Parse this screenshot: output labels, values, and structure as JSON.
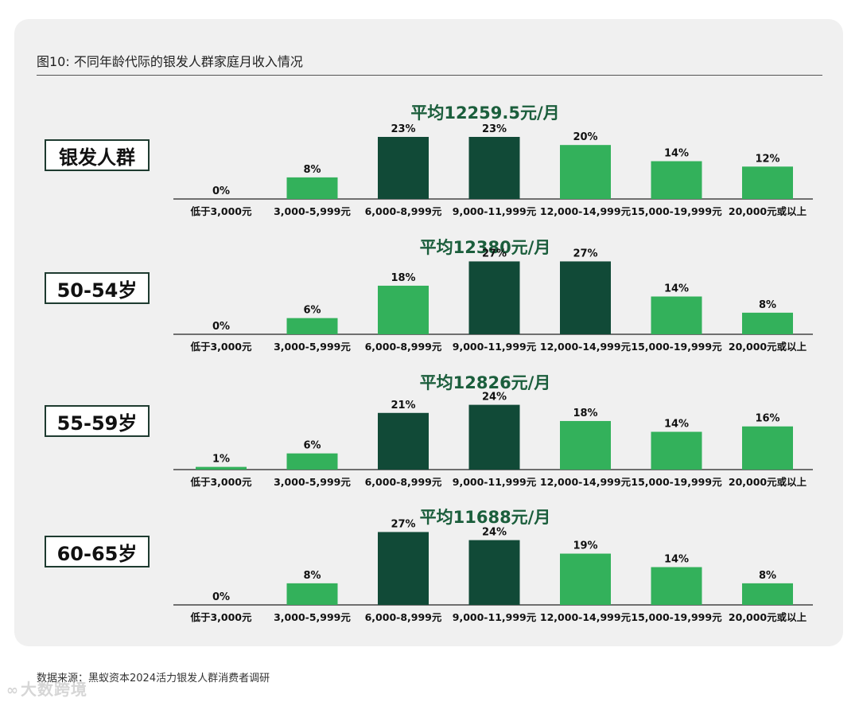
{
  "figure_title": "图10: 不同年龄代际的银发人群家庭月收入情况",
  "source": "数据来源：黑蚁资本2024活力银发人群消费者调研",
  "watermark": {
    "text": "大数跨境",
    "icon": "infinity-icon"
  },
  "colors": {
    "dark": "#114a37",
    "light": "#33b15b",
    "avg_text": "#1b5e3c",
    "axis": "#222222"
  },
  "chart_data": [
    {
      "type": "bar",
      "group": "银发人群",
      "average_label": "平均12259.5元/月",
      "categories": [
        "低于3,000元",
        "3,000-5,999元",
        "6,000-8,999元",
        "9,000-11,999元",
        "12,000-14,999元",
        "15,000-19,999元",
        "20,000元或以上"
      ],
      "values": [
        0,
        8,
        23,
        23,
        20,
        14,
        12
      ],
      "value_labels": [
        "0%",
        "8%",
        "23%",
        "23%",
        "20%",
        "14%",
        "12%"
      ],
      "highlight": [
        false,
        false,
        true,
        true,
        false,
        false,
        false
      ],
      "ylim": [
        0,
        30
      ],
      "unit": "%"
    },
    {
      "type": "bar",
      "group": "50-54岁",
      "average_label": "平均12380元/月",
      "categories": [
        "低于3,000元",
        "3,000-5,999元",
        "6,000-8,999元",
        "9,000-11,999元",
        "12,000-14,999元",
        "15,000-19,999元",
        "20,000元或以上"
      ],
      "values": [
        0,
        6,
        18,
        27,
        27,
        14,
        8
      ],
      "value_labels": [
        "0%",
        "6%",
        "18%",
        "27%",
        "27%",
        "14%",
        "8%"
      ],
      "highlight": [
        false,
        false,
        false,
        true,
        true,
        false,
        false
      ],
      "ylim": [
        0,
        30
      ],
      "unit": "%"
    },
    {
      "type": "bar",
      "group": "55-59岁",
      "average_label": "平均12826元/月",
      "categories": [
        "低于3,000元",
        "3,000-5,999元",
        "6,000-8,999元",
        "9,000-11,999元",
        "12,000-14,999元",
        "15,000-19,999元",
        "20,000元或以上"
      ],
      "values": [
        1,
        6,
        21,
        24,
        18,
        14,
        16
      ],
      "value_labels": [
        "1%",
        "6%",
        "21%",
        "24%",
        "18%",
        "14%",
        "16%"
      ],
      "highlight": [
        false,
        false,
        true,
        true,
        false,
        false,
        false
      ],
      "ylim": [
        0,
        30
      ],
      "unit": "%"
    },
    {
      "type": "bar",
      "group": "60-65岁",
      "average_label": "平均11688元/月",
      "categories": [
        "低于3,000元",
        "3,000-5,999元",
        "6,000-8,999元",
        "9,000-11,999元",
        "12,000-14,999元",
        "15,000-19,999元",
        "20,000元或以上"
      ],
      "values": [
        0,
        8,
        27,
        24,
        19,
        14,
        8
      ],
      "value_labels": [
        "0%",
        "8%",
        "27%",
        "24%",
        "19%",
        "14%",
        "8%"
      ],
      "highlight": [
        false,
        false,
        true,
        true,
        false,
        false,
        false
      ],
      "ylim": [
        0,
        30
      ],
      "unit": "%"
    }
  ]
}
